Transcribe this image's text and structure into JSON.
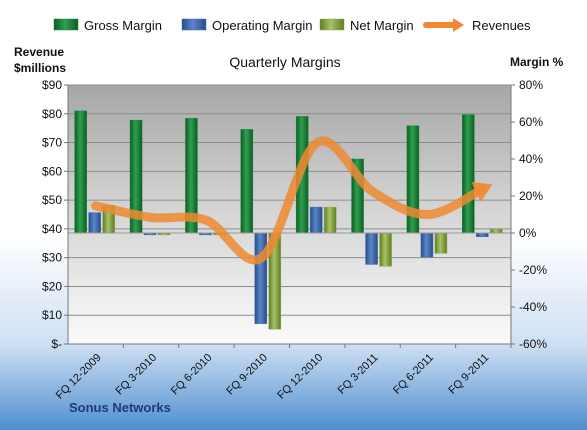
{
  "chart_data": {
    "type": "bar",
    "title": "Quarterly Margins",
    "company": "Sonus Networks",
    "left_axis_label": [
      "Revenue",
      "$millions"
    ],
    "right_axis_label": "Margin %",
    "categories": [
      "FQ 12-2009",
      "FQ 3-2010",
      "FQ 6-2010",
      "FQ 9-2010",
      "FQ 12-2010",
      "FQ 3-2011",
      "FQ 6-2011",
      "FQ 9-2011"
    ],
    "left_ticks": [
      "$-",
      "$10",
      "$20",
      "$30",
      "$40",
      "$50",
      "$60",
      "$70",
      "$80",
      "$90"
    ],
    "right_ticks": [
      "-60%",
      "-40%",
      "-20%",
      "0%",
      "20%",
      "40%",
      "60%",
      "80%"
    ],
    "ylim_left": [
      0,
      90
    ],
    "ylim_right": [
      -60,
      80
    ],
    "series": [
      {
        "name": "Gross Margin",
        "axis": "right",
        "kind": "bar",
        "color": "#1e8a3c",
        "values": [
          66,
          61,
          62,
          56,
          63,
          40,
          58,
          64
        ]
      },
      {
        "name": "Operating Margin",
        "axis": "right",
        "kind": "bar",
        "color": "#3f6fb5",
        "values": [
          11,
          -1,
          -1,
          -49,
          14,
          -17,
          -13,
          -2
        ]
      },
      {
        "name": "Net Margin",
        "axis": "right",
        "kind": "bar",
        "color": "#8fae4a",
        "values": [
          15,
          -1,
          -1,
          -52,
          14,
          -18,
          -11,
          2
        ]
      },
      {
        "name": "Revenues",
        "axis": "left",
        "kind": "line",
        "color": "#ee8a32",
        "values": [
          48,
          44,
          43,
          30,
          70,
          53,
          45,
          54
        ]
      }
    ],
    "legend_position": "top",
    "grid": true
  }
}
